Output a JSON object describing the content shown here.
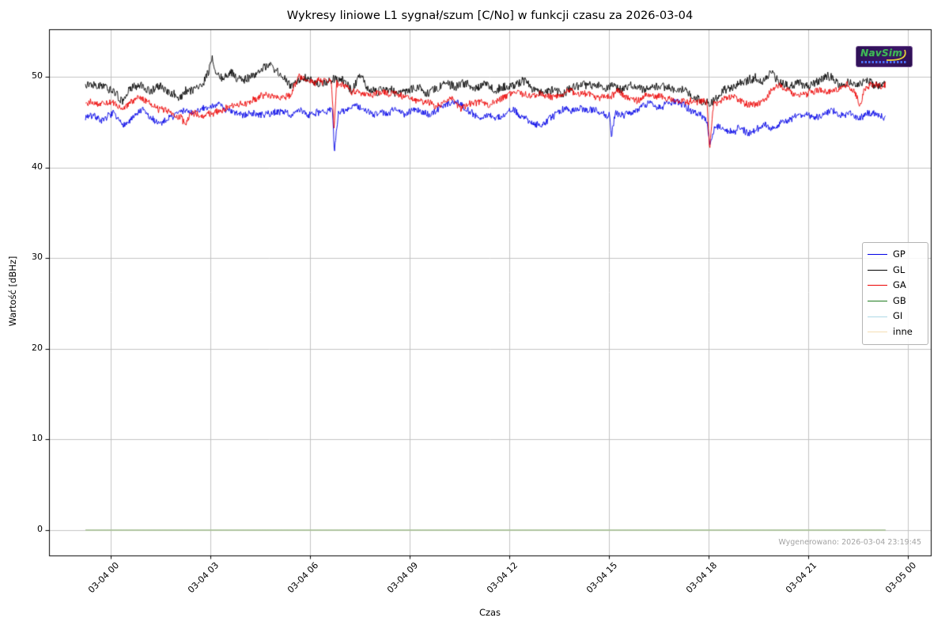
{
  "figure": {
    "watermark": "Wygenerowano: 2026-03-04 23:19:45",
    "logo_text": "NavSim"
  },
  "chart_data": {
    "type": "line",
    "title": "Wykresy liniowe L1 sygnał/szum [C/No] w funkcji czasu za 2026-03-04",
    "xlabel": "Czas",
    "ylabel": "Wartość [dBHz]",
    "grid": true,
    "legend_position": "center right",
    "ylim": [
      -2.8,
      55.2
    ],
    "xlim_hours": [
      -1.86,
      24.69
    ],
    "y_ticks": [
      0,
      10,
      20,
      30,
      40,
      50
    ],
    "y_tick_labels": [
      "0",
      "10",
      "20",
      "30",
      "40",
      "50"
    ],
    "x_tick_hours": [
      0,
      3,
      6,
      9,
      12,
      15,
      18,
      21,
      24
    ],
    "x_tick_labels": [
      "03-04 00",
      "03-04 03",
      "03-04 06",
      "03-04 09",
      "03-04 12",
      "03-04 15",
      "03-04 18",
      "03-04 21",
      "03-05 00"
    ],
    "series": [
      {
        "name": "GP",
        "color": "#0000e6",
        "noise": 0.36,
        "seed": 7,
        "lw": 0.9,
        "anchors": [
          [
            -0.76,
            45.6
          ],
          [
            -0.5,
            45.9
          ],
          [
            -0.2,
            45.3
          ],
          [
            0.05,
            45.9
          ],
          [
            0.3,
            44.8
          ],
          [
            0.55,
            45.0
          ],
          [
            0.8,
            45.9
          ],
          [
            1.0,
            46.3
          ],
          [
            1.2,
            45.2
          ],
          [
            1.45,
            44.7
          ],
          [
            1.7,
            45.3
          ],
          [
            1.95,
            45.8
          ],
          [
            2.2,
            46.3
          ],
          [
            2.45,
            45.9
          ],
          [
            2.7,
            46.2
          ],
          [
            2.95,
            46.6
          ],
          [
            3.2,
            47.2
          ],
          [
            3.45,
            46.5
          ],
          [
            3.7,
            45.9
          ],
          [
            3.95,
            45.6
          ],
          [
            4.2,
            46.2
          ],
          [
            4.45,
            45.7
          ],
          [
            4.7,
            45.9
          ],
          [
            4.95,
            46.0
          ],
          [
            5.2,
            46.2
          ],
          [
            5.45,
            45.8
          ],
          [
            5.7,
            46.3
          ],
          [
            5.95,
            45.9
          ],
          [
            6.2,
            46.4
          ],
          [
            6.45,
            46.1
          ],
          [
            6.68,
            46.3
          ],
          [
            6.73,
            41.7
          ],
          [
            6.85,
            45.9
          ],
          [
            7.1,
            46.2
          ],
          [
            7.35,
            46.9
          ],
          [
            7.6,
            46.1
          ],
          [
            7.85,
            45.8
          ],
          [
            8.1,
            46.4
          ],
          [
            8.35,
            45.7
          ],
          [
            8.6,
            46.5
          ],
          [
            8.85,
            46.0
          ],
          [
            9.1,
            46.7
          ],
          [
            9.35,
            46.2
          ],
          [
            9.6,
            45.9
          ],
          [
            9.85,
            46.4
          ],
          [
            10.1,
            47.0
          ],
          [
            10.35,
            47.4
          ],
          [
            10.6,
            46.8
          ],
          [
            10.85,
            46.1
          ],
          [
            11.1,
            45.6
          ],
          [
            11.35,
            46.0
          ],
          [
            11.6,
            45.4
          ],
          [
            11.85,
            45.9
          ],
          [
            12.1,
            46.2
          ],
          [
            12.35,
            45.6
          ],
          [
            12.6,
            45.2
          ],
          [
            12.85,
            44.9
          ],
          [
            13.1,
            45.3
          ],
          [
            13.35,
            45.8
          ],
          [
            13.6,
            46.5
          ],
          [
            13.85,
            46.2
          ],
          [
            14.1,
            46.7
          ],
          [
            14.35,
            46.4
          ],
          [
            14.6,
            46.6
          ],
          [
            14.85,
            46.2
          ],
          [
            15.02,
            46.0
          ],
          [
            15.07,
            43.6
          ],
          [
            15.2,
            46.3
          ],
          [
            15.45,
            46.0
          ],
          [
            15.7,
            46.2
          ],
          [
            15.95,
            46.6
          ],
          [
            16.2,
            47.0
          ],
          [
            16.45,
            46.7
          ],
          [
            16.7,
            47.1
          ],
          [
            16.95,
            47.4
          ],
          [
            17.2,
            46.8
          ],
          [
            17.45,
            46.3
          ],
          [
            17.7,
            45.9
          ],
          [
            17.95,
            45.3
          ],
          [
            18.04,
            42.6
          ],
          [
            18.2,
            44.8
          ],
          [
            18.45,
            44.3
          ],
          [
            18.7,
            44.0
          ],
          [
            18.95,
            44.6
          ],
          [
            19.2,
            43.9
          ],
          [
            19.45,
            44.3
          ],
          [
            19.7,
            44.9
          ],
          [
            19.95,
            44.4
          ],
          [
            20.2,
            45.1
          ],
          [
            20.45,
            45.5
          ],
          [
            20.7,
            45.8
          ],
          [
            20.95,
            46.0
          ],
          [
            21.2,
            45.5
          ],
          [
            21.45,
            45.8
          ],
          [
            21.7,
            46.1
          ],
          [
            21.95,
            45.6
          ],
          [
            22.2,
            45.9
          ],
          [
            22.45,
            45.4
          ],
          [
            22.7,
            45.7
          ],
          [
            22.95,
            46.0
          ],
          [
            23.33,
            45.6
          ]
        ]
      },
      {
        "name": "GL",
        "color": "#000000",
        "noise": 0.44,
        "seed": 13,
        "lw": 0.9,
        "anchors": [
          [
            -0.76,
            49.3
          ],
          [
            -0.3,
            49.6
          ],
          [
            0.1,
            48.6
          ],
          [
            0.35,
            47.2
          ],
          [
            0.6,
            48.7
          ],
          [
            0.9,
            48.9
          ],
          [
            1.2,
            48.4
          ],
          [
            1.5,
            48.9
          ],
          [
            1.8,
            48.2
          ],
          [
            2.1,
            47.6
          ],
          [
            2.25,
            48.4
          ],
          [
            2.5,
            48.5
          ],
          [
            2.7,
            48.9
          ],
          [
            2.95,
            50.8
          ],
          [
            3.05,
            52.3
          ],
          [
            3.15,
            50.6
          ],
          [
            3.35,
            49.8
          ],
          [
            3.6,
            50.4
          ],
          [
            3.8,
            49.6
          ],
          [
            4.1,
            49.9
          ],
          [
            4.4,
            50.3
          ],
          [
            4.75,
            51.1
          ],
          [
            4.95,
            50.4
          ],
          [
            5.2,
            49.8
          ],
          [
            5.45,
            48.9
          ],
          [
            5.7,
            49.7
          ],
          [
            5.95,
            49.6
          ],
          [
            6.2,
            48.8
          ],
          [
            6.5,
            49.3
          ],
          [
            6.75,
            49.8
          ],
          [
            7.0,
            49.4
          ],
          [
            7.25,
            48.4
          ],
          [
            7.5,
            50.4
          ],
          [
            7.7,
            49.0
          ],
          [
            8.0,
            48.5
          ],
          [
            8.3,
            48.8
          ],
          [
            8.6,
            48.3
          ],
          [
            8.9,
            48.7
          ],
          [
            9.2,
            49.1
          ],
          [
            9.5,
            48.4
          ],
          [
            9.8,
            48.9
          ],
          [
            10.1,
            49.4
          ],
          [
            10.4,
            48.8
          ],
          [
            10.7,
            49.2
          ],
          [
            11.0,
            48.7
          ],
          [
            11.3,
            49.1
          ],
          [
            11.6,
            48.5
          ],
          [
            11.9,
            49.0
          ],
          [
            12.2,
            49.3
          ],
          [
            12.5,
            49.8
          ],
          [
            12.7,
            49.2
          ],
          [
            13.0,
            48.3
          ],
          [
            13.3,
            48.6
          ],
          [
            13.6,
            48.2
          ],
          [
            13.9,
            48.8
          ],
          [
            14.2,
            49.0
          ],
          [
            14.5,
            48.6
          ],
          [
            14.8,
            49.1
          ],
          [
            15.1,
            48.8
          ],
          [
            15.4,
            48.5
          ],
          [
            15.7,
            48.8
          ],
          [
            16.0,
            48.2
          ],
          [
            16.3,
            48.6
          ],
          [
            16.6,
            48.9
          ],
          [
            16.9,
            48.8
          ],
          [
            17.2,
            48.5
          ],
          [
            17.5,
            47.9
          ],
          [
            17.8,
            47.3
          ],
          [
            18.0,
            46.8
          ],
          [
            18.2,
            47.6
          ],
          [
            18.5,
            48.7
          ],
          [
            18.8,
            49.1
          ],
          [
            19.1,
            49.5
          ],
          [
            19.4,
            50.0
          ],
          [
            19.6,
            49.4
          ],
          [
            19.9,
            50.4
          ],
          [
            20.1,
            49.6
          ],
          [
            20.4,
            48.9
          ],
          [
            20.7,
            49.4
          ],
          [
            21.0,
            49.0
          ],
          [
            21.3,
            49.6
          ],
          [
            21.6,
            50.1
          ],
          [
            21.9,
            49.3
          ],
          [
            22.2,
            49.7
          ],
          [
            22.5,
            49.0
          ],
          [
            22.8,
            49.4
          ],
          [
            23.1,
            48.9
          ],
          [
            23.33,
            49.2
          ]
        ]
      },
      {
        "name": "GA",
        "color": "#ec0000",
        "noise": 0.36,
        "seed": 29,
        "lw": 0.9,
        "anchors": [
          [
            -0.76,
            47.4
          ],
          [
            -0.4,
            47.0
          ],
          [
            0.0,
            47.2
          ],
          [
            0.3,
            46.5
          ],
          [
            0.6,
            47.0
          ],
          [
            0.9,
            47.6
          ],
          [
            1.2,
            46.9
          ],
          [
            1.5,
            46.4
          ],
          [
            1.8,
            46.1
          ],
          [
            2.1,
            45.6
          ],
          [
            2.25,
            44.6
          ],
          [
            2.4,
            45.9
          ],
          [
            2.7,
            45.8
          ],
          [
            3.0,
            45.9
          ],
          [
            3.3,
            46.3
          ],
          [
            3.6,
            46.8
          ],
          [
            3.9,
            47.2
          ],
          [
            4.2,
            47.6
          ],
          [
            4.5,
            47.9
          ],
          [
            4.8,
            48.1
          ],
          [
            5.1,
            47.7
          ],
          [
            5.4,
            47.9
          ],
          [
            5.65,
            49.6
          ],
          [
            5.9,
            49.4
          ],
          [
            6.15,
            49.1
          ],
          [
            6.4,
            49.3
          ],
          [
            6.65,
            49.6
          ],
          [
            6.72,
            44.4
          ],
          [
            6.8,
            49.4
          ],
          [
            7.0,
            49.2
          ],
          [
            7.2,
            48.6
          ],
          [
            7.5,
            48.2
          ],
          [
            7.8,
            47.7
          ],
          [
            8.1,
            48.1
          ],
          [
            8.4,
            47.9
          ],
          [
            8.7,
            48.2
          ],
          [
            9.0,
            47.8
          ],
          [
            9.3,
            47.4
          ],
          [
            9.6,
            47.1
          ],
          [
            9.9,
            46.8
          ],
          [
            10.2,
            47.6
          ],
          [
            10.5,
            46.6
          ],
          [
            10.8,
            47.0
          ],
          [
            11.1,
            47.4
          ],
          [
            11.4,
            46.9
          ],
          [
            11.7,
            47.3
          ],
          [
            12.0,
            48.0
          ],
          [
            12.3,
            48.3
          ],
          [
            12.6,
            48.0
          ],
          [
            12.9,
            48.2
          ],
          [
            13.2,
            47.8
          ],
          [
            13.5,
            48.0
          ],
          [
            13.8,
            48.5
          ],
          [
            14.1,
            48.2
          ],
          [
            14.4,
            48.0
          ],
          [
            14.7,
            47.7
          ],
          [
            15.0,
            47.6
          ],
          [
            15.3,
            48.4
          ],
          [
            15.6,
            47.8
          ],
          [
            15.9,
            47.4
          ],
          [
            16.2,
            47.7
          ],
          [
            16.5,
            47.9
          ],
          [
            16.8,
            47.5
          ],
          [
            17.1,
            47.2
          ],
          [
            17.4,
            46.8
          ],
          [
            17.7,
            47.1
          ],
          [
            17.95,
            47.0
          ],
          [
            18.03,
            41.6
          ],
          [
            18.15,
            46.9
          ],
          [
            18.4,
            47.5
          ],
          [
            18.7,
            48.0
          ],
          [
            19.0,
            47.4
          ],
          [
            19.3,
            46.9
          ],
          [
            19.6,
            47.3
          ],
          [
            19.9,
            48.3
          ],
          [
            20.1,
            49.0
          ],
          [
            20.4,
            48.5
          ],
          [
            20.7,
            47.9
          ],
          [
            21.0,
            48.3
          ],
          [
            21.3,
            48.9
          ],
          [
            21.6,
            48.4
          ],
          [
            21.9,
            48.2
          ],
          [
            22.2,
            49.1
          ],
          [
            22.4,
            48.6
          ],
          [
            22.55,
            46.9
          ],
          [
            22.7,
            48.8
          ],
          [
            23.0,
            49.0
          ],
          [
            23.33,
            49.1
          ]
        ]
      },
      {
        "name": "GB",
        "color": "#1e7a1e",
        "noise": 0,
        "seed": 1,
        "lw": 1.4,
        "anchors": [
          [
            -0.76,
            0.0
          ],
          [
            23.33,
            0.0
          ]
        ]
      },
      {
        "name": "GI",
        "color": "#add8e6",
        "noise": 0,
        "seed": 2,
        "lw": 1.0,
        "anchors": [
          [
            -0.76,
            0.0
          ],
          [
            23.33,
            0.0
          ]
        ]
      },
      {
        "name": "inne",
        "color": "#f5deb3",
        "noise": 0,
        "seed": 3,
        "lw": 1.0,
        "anchors": [
          [
            -0.76,
            0.0
          ],
          [
            23.33,
            0.0
          ]
        ]
      }
    ]
  }
}
